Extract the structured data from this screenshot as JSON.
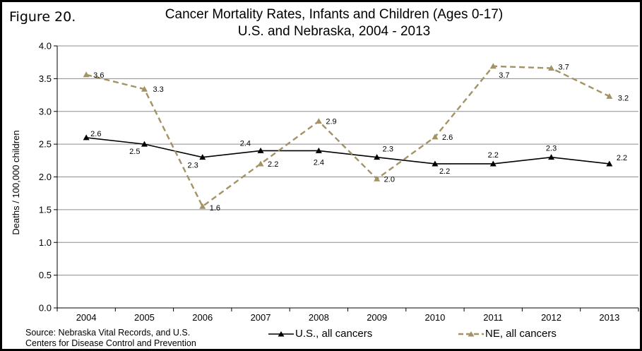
{
  "figure_label": "Figure 20.",
  "title_line1": "Cancer Mortality Rates, Infants and Children (Ages 0-17)",
  "title_line2": "U.S. and Nebraska, 2004 - 2013",
  "source_line1": "Source: Nebraska Vital Records, and U.S.",
  "source_line2": "Centers for Disease Control and Prevention",
  "chart_data": {
    "type": "line",
    "title": "Cancer Mortality Rates, Infants and Children (Ages 0-17) U.S. and Nebraska, 2004 - 2013",
    "xlabel": "",
    "ylabel": "Deaths / 100,000 children",
    "categories": [
      "2004",
      "2005",
      "2006",
      "2007",
      "2008",
      "2009",
      "2010",
      "2011",
      "2012",
      "2013"
    ],
    "ylim": [
      0,
      4.0
    ],
    "yticks": [
      "0.0",
      "0.5",
      "1.0",
      "1.5",
      "2.0",
      "2.5",
      "3.0",
      "3.5",
      "4.0"
    ],
    "grid": "horizontal",
    "legend_placement": "bottom",
    "series": [
      {
        "name": "U.S., all cancers",
        "values": [
          2.6,
          2.5,
          2.3,
          2.4,
          2.4,
          2.3,
          2.2,
          2.2,
          2.3,
          2.2
        ],
        "labels": [
          "2.6",
          "2.5",
          "2.3",
          "2.4",
          "2.4",
          "2.3",
          "2.2",
          "2.2",
          "2.3",
          "2.2"
        ],
        "color": "#000000",
        "style": "solid",
        "marker": "triangle"
      },
      {
        "name": "NE, all cancers",
        "values": [
          3.56,
          3.34,
          1.55,
          2.2,
          2.85,
          1.97,
          2.61,
          3.69,
          3.66,
          3.23
        ],
        "labels": [
          "3.6",
          "3.3",
          "1.6",
          "2.2",
          "2.9",
          "2.0",
          "2.6",
          "3.7",
          "3.7",
          "3.2"
        ],
        "color": "#a39263",
        "style": "dashed",
        "marker": "triangle"
      }
    ]
  }
}
